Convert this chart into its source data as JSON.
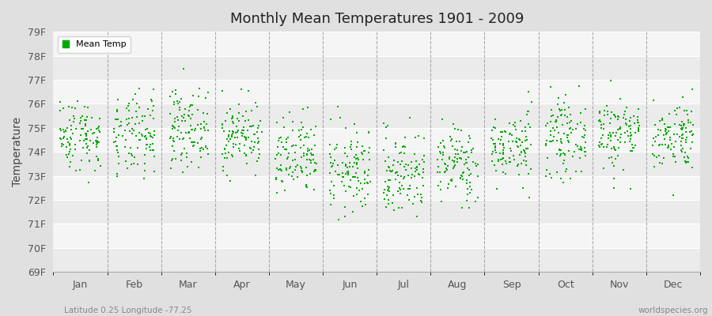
{
  "title": "Monthly Mean Temperatures 1901 - 2009",
  "ylabel": "Temperature",
  "xlabel_labels": [
    "Jan",
    "Feb",
    "Mar",
    "Apr",
    "May",
    "Jun",
    "Jul",
    "Aug",
    "Sep",
    "Oct",
    "Nov",
    "Dec"
  ],
  "ytick_labels": [
    "69F",
    "70F",
    "71F",
    "72F",
    "73F",
    "74F",
    "75F",
    "76F",
    "77F",
    "78F",
    "79F"
  ],
  "ytick_values": [
    69,
    70,
    71,
    72,
    73,
    74,
    75,
    76,
    77,
    78,
    79
  ],
  "ylim": [
    69,
    79
  ],
  "dot_color": "#00aa00",
  "bg_color": "#e0e0e0",
  "plot_bg_color": "#ffffff",
  "band_color_even": "#ebebeb",
  "band_color_odd": "#f5f5f5",
  "legend_label": "Mean Temp",
  "subtitle": "Latitude 0.25 Longitude -77.25",
  "watermark": "worldspecies.org",
  "month_means": [
    74.7,
    74.6,
    75.0,
    74.7,
    73.7,
    73.2,
    73.1,
    73.5,
    74.2,
    74.6,
    74.8,
    74.7
  ],
  "month_stds": [
    0.75,
    0.85,
    0.8,
    0.72,
    0.85,
    0.9,
    0.9,
    0.8,
    0.72,
    0.78,
    0.78,
    0.72
  ],
  "n_years": 109,
  "seed": 42
}
